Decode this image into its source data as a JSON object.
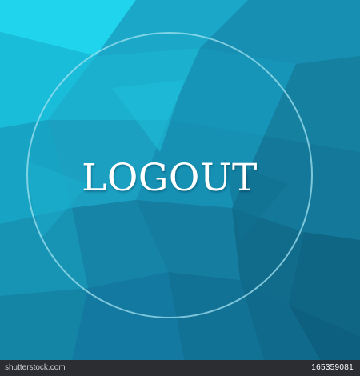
{
  "button": {
    "label": "LOGOUT"
  },
  "watermark": {
    "site": "shutterstock.com",
    "id": "165359081"
  },
  "colors": {
    "background": "#1a8fb0",
    "ring": "#a0e1f0",
    "text": "#ffffff",
    "credit_bar": "#2b2d33"
  }
}
